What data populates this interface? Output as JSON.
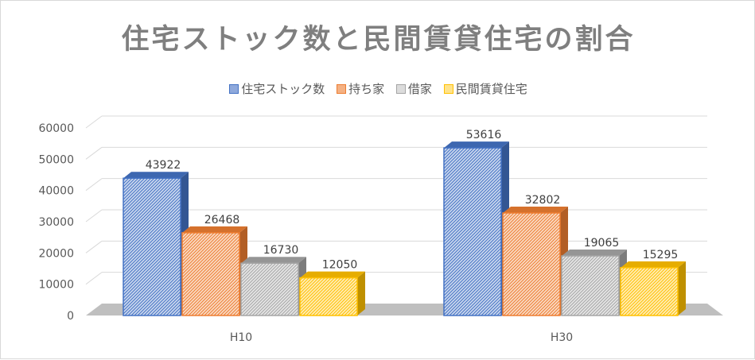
{
  "chart_data": {
    "type": "bar",
    "title": "住宅ストック数と民間賃貸住宅の割合",
    "categories": [
      "H10",
      "H30"
    ],
    "series": [
      {
        "name": "住宅ストック数",
        "values": [
          43922,
          53616
        ],
        "color": "#4472c4"
      },
      {
        "name": "持ち家",
        "values": [
          26468,
          32802
        ],
        "color": "#ed7d31"
      },
      {
        "name": "借家",
        "values": [
          16730,
          19065
        ],
        "color": "#a5a5a5"
      },
      {
        "name": "民間賃貸住宅",
        "values": [
          12050,
          15295
        ],
        "color": "#ffc000"
      }
    ],
    "yticks": [
      "0",
      "10000",
      "20000",
      "30000",
      "40000",
      "50000",
      "60000"
    ],
    "ylim": [
      0,
      60000
    ],
    "legend_position": "top",
    "grid": true,
    "xlabel": "",
    "ylabel": ""
  }
}
